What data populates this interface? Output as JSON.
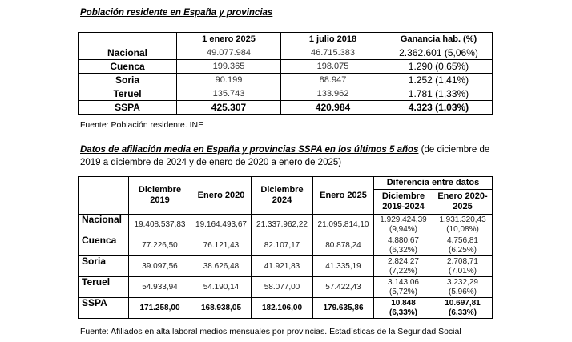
{
  "section1": {
    "title": "Población residente en España y provincias",
    "table": {
      "header": [
        "1 enero 2025",
        "1 julio 2018",
        "Ganancia hab. (%)"
      ],
      "rows": [
        [
          "Nacional",
          "49.077.984",
          "46.715.383",
          "2.362.601 (5,06%)"
        ],
        [
          "Cuenca",
          "199.365",
          "198.075",
          "1.290 (0,65%)"
        ],
        [
          "Soria",
          "90.199",
          "88.947",
          "1.252 (1,41%)"
        ],
        [
          "Teruel",
          "135.743",
          "133.962",
          "1.781 (1,33%)"
        ],
        [
          "SSPA",
          "425.307",
          "420.984",
          "4.323 (1,03%)"
        ]
      ]
    },
    "source": "Fuente: Población residente. INE"
  },
  "section2": {
    "title": "Datos de afiliación media en España y provincias SSPA en los últimos 5 años",
    "subtitle": "(de diciembre de 2019 a diciembre de 2024 y de enero de 2020 a enero de 2025)",
    "table": {
      "header": [
        "Diciembre 2019",
        "Enero 2020",
        "Diciembre 2024",
        "Enero 2025"
      ],
      "group_header": "Diferencia entre datos",
      "sub_header": [
        "Diciembre 2019-2024",
        "Enero 2020-2025"
      ],
      "rows": [
        [
          "Nacional",
          "19.408.537,83",
          "19.164.493,67",
          "21.337.962,22",
          "21.095.814,10",
          [
            "1.929.424,39",
            "(9,94%)"
          ],
          [
            "1.931.320,43",
            "(10,08%)"
          ]
        ],
        [
          "Cuenca",
          "77.226,50",
          "76.121,43",
          "82.107,17",
          "80.878,24",
          [
            "4.880,67",
            "(6,32%)"
          ],
          [
            "4.756,81",
            "(6,25%)"
          ]
        ],
        [
          "Soria",
          "39.097,56",
          "38.626,48",
          "41.921,83",
          "41.335,19",
          [
            "2.824,27",
            "(7,22%)"
          ],
          [
            "2.708,71",
            "(7,01%)"
          ]
        ],
        [
          "Teruel",
          "54.933,94",
          "54.190,14",
          "58.077,00",
          "57.422,43",
          [
            "3.143,06",
            "(5,72%)"
          ],
          [
            "3.232,29",
            "(5,96%)"
          ]
        ],
        [
          "SSPA",
          "171.258,00",
          "168.938,05",
          "182.106,00",
          "179.635,86",
          [
            "10.848",
            "(6,33%)"
          ],
          [
            "10.697,81",
            "(6,33%)"
          ]
        ]
      ]
    },
    "source": "Fuente: Afiliados en alta laboral medios mensuales por provincias. Estadísticas de la Seguridad Social"
  }
}
